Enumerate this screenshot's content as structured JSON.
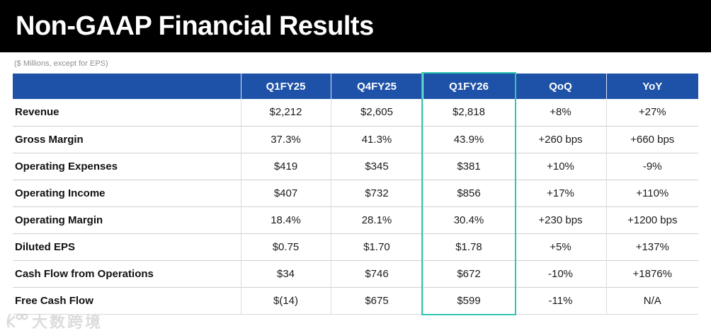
{
  "page": {
    "title": "Non-GAAP Financial Results",
    "note": "($ Millions, except for EPS)"
  },
  "table": {
    "columns": [
      "Q1FY25",
      "Q4FY25",
      "Q1FY26",
      "QoQ",
      "YoY"
    ],
    "highlighted_column": "Q1FY26",
    "rows": [
      {
        "label": "Revenue",
        "values": [
          "$2,212",
          "$2,605",
          "$2,818",
          "+8%",
          "+27%"
        ]
      },
      {
        "label": "Gross Margin",
        "values": [
          "37.3%",
          "41.3%",
          "43.9%",
          "+260 bps",
          "+660 bps"
        ]
      },
      {
        "label": "Operating Expenses",
        "values": [
          "$419",
          "$345",
          "$381",
          "+10%",
          "-9%"
        ]
      },
      {
        "label": "Operating Income",
        "values": [
          "$407",
          "$732",
          "$856",
          "+17%",
          "+110%"
        ]
      },
      {
        "label": "Operating Margin",
        "values": [
          "18.4%",
          "28.1%",
          "30.4%",
          "+230 bps",
          "+1200 bps"
        ]
      },
      {
        "label": "Diluted EPS",
        "values": [
          "$0.75",
          "$1.70",
          "$1.78",
          "+5%",
          "+137%"
        ]
      },
      {
        "label": "Cash Flow from Operations",
        "values": [
          "$34",
          "$746",
          "$672",
          "-10%",
          "+1876%"
        ]
      },
      {
        "label": "Free Cash Flow",
        "values": [
          "$(14)",
          "$675",
          "$599",
          "-11%",
          "N/A"
        ]
      }
    ]
  },
  "watermark": {
    "text": "大数跨境"
  },
  "colors": {
    "banner_bg": "#000000",
    "header_blue": "#1E52A8",
    "highlight_teal": "#2FC7B0"
  }
}
